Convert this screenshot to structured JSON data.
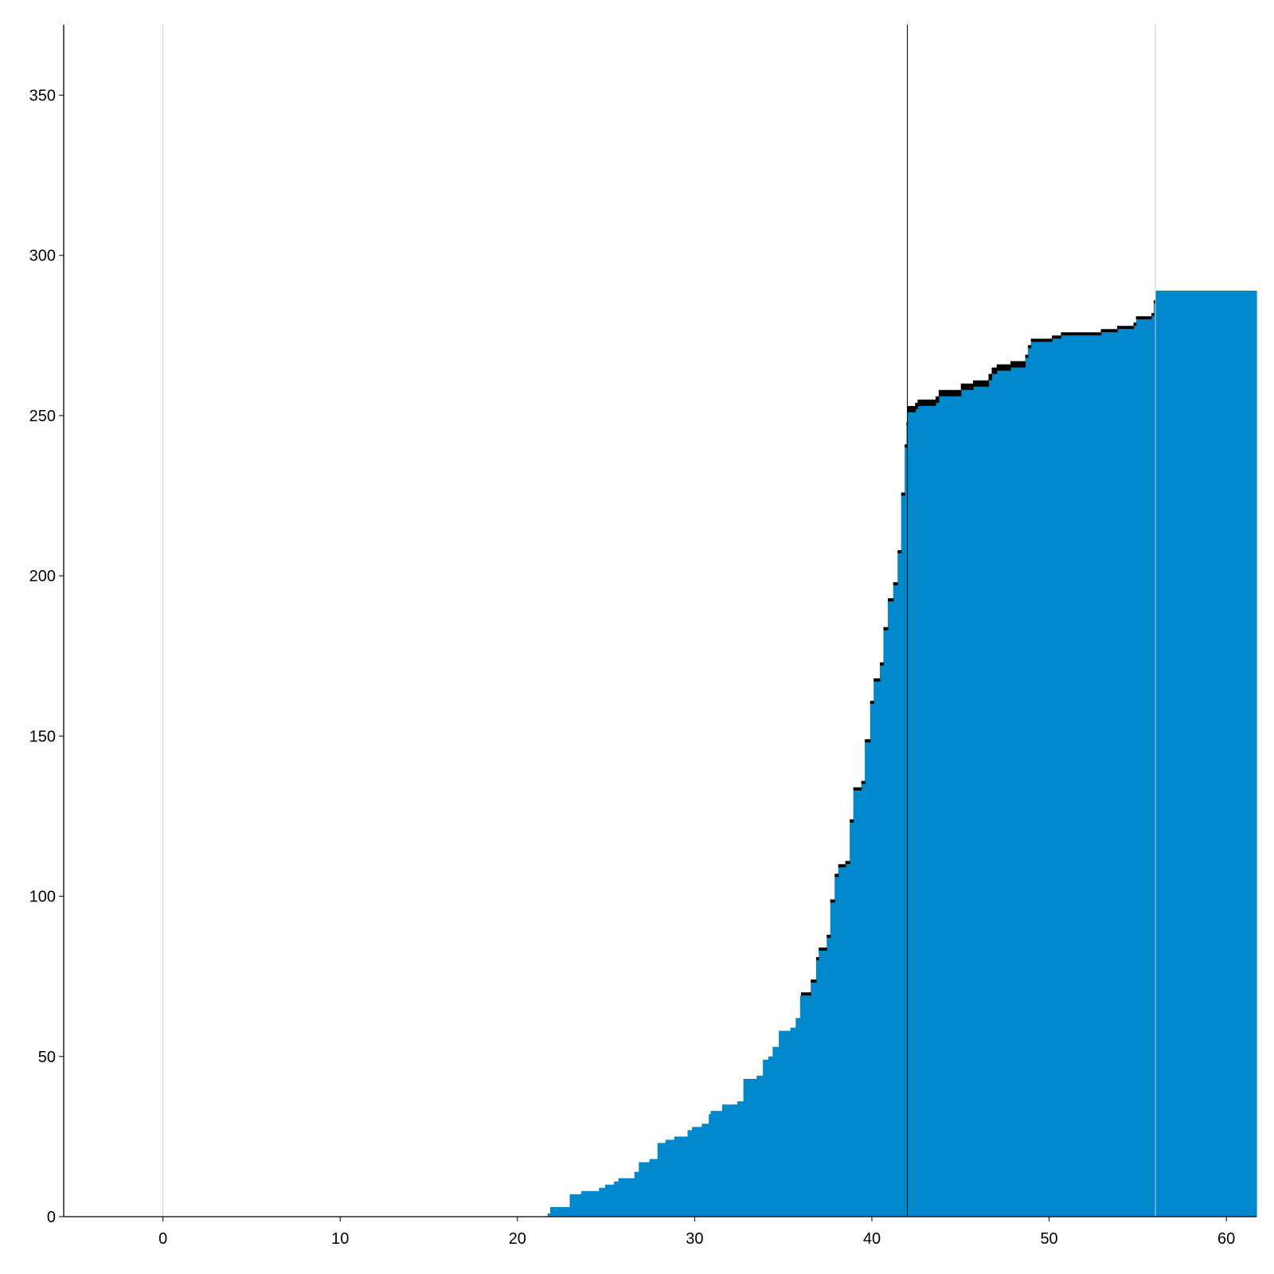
{
  "chart_data": {
    "type": "area",
    "style": "stacked step area",
    "title": "",
    "xlabel": "",
    "ylabel": "",
    "xlim": [
      -5.6,
      61.7
    ],
    "ylim": [
      0,
      372
    ],
    "xticks": [
      0,
      10,
      20,
      30,
      40,
      50,
      60
    ],
    "yticks": [
      0,
      50,
      100,
      150,
      200,
      250,
      300,
      350
    ],
    "grid": false,
    "vertical_lines": [
      {
        "x": 0,
        "color": "#cccccc"
      },
      {
        "x": 42,
        "color": "#000000"
      },
      {
        "x": 56,
        "color": "#cccccc"
      }
    ],
    "series": [
      {
        "color": "#0088cc",
        "steps": [
          [
            21.7,
            1
          ],
          [
            21.85,
            3
          ],
          [
            22.95,
            7
          ],
          [
            23.6,
            8
          ],
          [
            24.6,
            9
          ],
          [
            24.95,
            10
          ],
          [
            25.45,
            11
          ],
          [
            25.7,
            12
          ],
          [
            26.6,
            14
          ],
          [
            26.85,
            17
          ],
          [
            27.45,
            18
          ],
          [
            27.9,
            23
          ],
          [
            28.35,
            24
          ],
          [
            28.85,
            25
          ],
          [
            29.6,
            27
          ],
          [
            29.85,
            28
          ],
          [
            30.4,
            29
          ],
          [
            30.8,
            32
          ],
          [
            30.9,
            33
          ],
          [
            31.55,
            35
          ],
          [
            32.4,
            36
          ],
          [
            32.75,
            43
          ],
          [
            33.5,
            44
          ],
          [
            33.85,
            49
          ],
          [
            34.15,
            50
          ],
          [
            34.4,
            53
          ],
          [
            34.75,
            58
          ],
          [
            35.4,
            59
          ],
          [
            35.7,
            62
          ],
          [
            35.95,
            69
          ],
          [
            36.55,
            73
          ],
          [
            36.85,
            80
          ],
          [
            37.0,
            83
          ],
          [
            37.45,
            87
          ],
          [
            37.65,
            98
          ],
          [
            37.9,
            106
          ],
          [
            38.1,
            109
          ],
          [
            38.5,
            110
          ],
          [
            38.75,
            123
          ],
          [
            38.95,
            133
          ],
          [
            39.4,
            135
          ],
          [
            39.6,
            148
          ],
          [
            39.9,
            160
          ],
          [
            40.1,
            167
          ],
          [
            40.45,
            172
          ],
          [
            40.65,
            183
          ],
          [
            40.9,
            192
          ],
          [
            41.2,
            197
          ],
          [
            41.45,
            207
          ],
          [
            41.65,
            225
          ],
          [
            41.85,
            240
          ],
          [
            41.95,
            247
          ],
          [
            42.0,
            251
          ],
          [
            42.44,
            252
          ],
          [
            42.58,
            253
          ],
          [
            43.59,
            254
          ],
          [
            43.77,
            256
          ],
          [
            45.02,
            258
          ],
          [
            45.71,
            259
          ],
          [
            46.58,
            261
          ],
          [
            46.76,
            263
          ],
          [
            47.04,
            264
          ],
          [
            47.82,
            265
          ],
          [
            48.65,
            268
          ],
          [
            48.8,
            271
          ],
          [
            48.97,
            273
          ],
          [
            50.16,
            274
          ],
          [
            50.67,
            275
          ],
          [
            52.92,
            276
          ],
          [
            53.84,
            277
          ],
          [
            54.76,
            278
          ],
          [
            54.9,
            280
          ],
          [
            55.77,
            281
          ],
          [
            55.9,
            285
          ],
          [
            56.0,
            289
          ]
        ],
        "end_x": 61.7
      },
      {
        "color": "#000000",
        "steps": [
          [
            36.0,
            1
          ],
          [
            42.0,
            2
          ],
          [
            48.65,
            1
          ],
          [
            56.0,
            0
          ]
        ],
        "end_x": 61.7
      }
    ]
  }
}
